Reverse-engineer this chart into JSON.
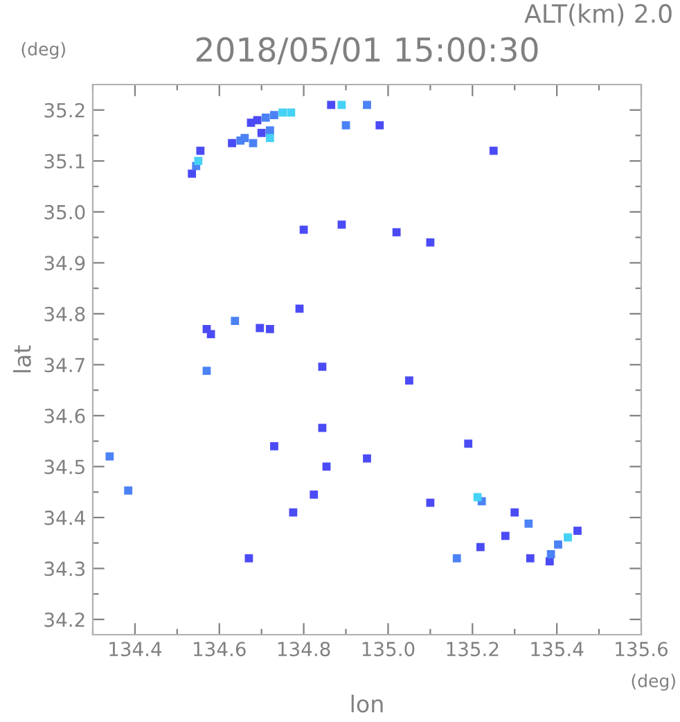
{
  "chart_data": {
    "type": "scatter",
    "title": "2018/05/01 15:00:30",
    "xlabel": "lon",
    "ylabel": "lat",
    "annotations": [
      "ALT(km) 2.0",
      "(deg)",
      "(deg)"
    ],
    "marker": "square",
    "grid": false,
    "xlim": [
      134.3,
      135.6
    ],
    "ylim": [
      34.17,
      35.25
    ],
    "xticks": [
      {
        "value": 134.3,
        "label": null
      },
      134.4,
      {
        "value": 134.5,
        "label": null
      },
      134.6,
      {
        "value": 134.7,
        "label": null
      },
      134.8,
      {
        "value": 134.9,
        "label": null
      },
      {
        "value": 135.0,
        "label": "135.0"
      },
      {
        "value": 135.1,
        "label": null
      },
      135.2,
      {
        "value": 135.3,
        "label": null
      },
      135.4,
      {
        "value": 135.5,
        "label": null
      },
      135.6
    ],
    "yticks": [
      34.2,
      {
        "value": 34.25,
        "label": null
      },
      34.3,
      {
        "value": 34.35,
        "label": null
      },
      34.4,
      {
        "value": 34.45,
        "label": null
      },
      34.5,
      {
        "value": 34.55,
        "label": null
      },
      34.6,
      {
        "value": 34.65,
        "label": null
      },
      34.7,
      {
        "value": 34.75,
        "label": null
      },
      34.8,
      {
        "value": 34.85,
        "label": null
      },
      34.9,
      {
        "value": 34.95,
        "label": null
      },
      {
        "value": 35.0,
        "label": "35.0"
      },
      {
        "value": 35.05,
        "label": null
      },
      35.1,
      {
        "value": 35.15,
        "label": null
      },
      35.2
    ],
    "series": [
      {
        "color": "#4b4bf5",
        "x": [
          134.535,
          134.555,
          134.675,
          134.69,
          134.63,
          134.7,
          134.865,
          134.98,
          135.25,
          134.8,
          134.89,
          135.02,
          135.1,
          134.57,
          134.696,
          134.72,
          134.58,
          134.79,
          134.844,
          135.05,
          134.844,
          134.824,
          134.775,
          134.854,
          134.95,
          134.73,
          134.67,
          135.19,
          135.3,
          135.278,
          135.219,
          135.337,
          135.383,
          135.449,
          135.1
        ],
        "values": [
          35.075,
          35.12,
          35.175,
          35.18,
          35.135,
          35.155,
          35.21,
          35.17,
          35.12,
          34.965,
          34.975,
          34.96,
          34.94,
          34.77,
          34.772,
          34.77,
          34.76,
          34.81,
          34.696,
          34.669,
          34.576,
          34.445,
          34.41,
          34.5,
          34.516,
          34.54,
          34.32,
          34.545,
          34.41,
          34.364,
          34.342,
          34.32,
          34.314,
          34.374,
          34.429
        ]
      },
      {
        "color": "#4b82f5",
        "x": [
          134.545,
          134.71,
          134.73,
          134.65,
          134.66,
          134.68,
          134.72,
          134.95,
          134.637,
          134.57,
          134.34,
          134.384,
          135.222,
          135.333,
          135.163,
          135.386,
          135.403,
          134.9
        ],
        "values": [
          35.09,
          35.185,
          35.19,
          35.14,
          35.145,
          35.135,
          35.16,
          35.21,
          34.786,
          34.688,
          34.52,
          34.453,
          34.432,
          34.388,
          34.32,
          34.328,
          34.347,
          35.17
        ]
      },
      {
        "color": "#45d2f5",
        "x": [
          134.55,
          134.75,
          134.77,
          134.72,
          134.89,
          135.212,
          135.426
        ],
        "values": [
          35.1,
          35.195,
          35.195,
          35.145,
          35.21,
          34.44,
          34.361
        ]
      }
    ]
  }
}
